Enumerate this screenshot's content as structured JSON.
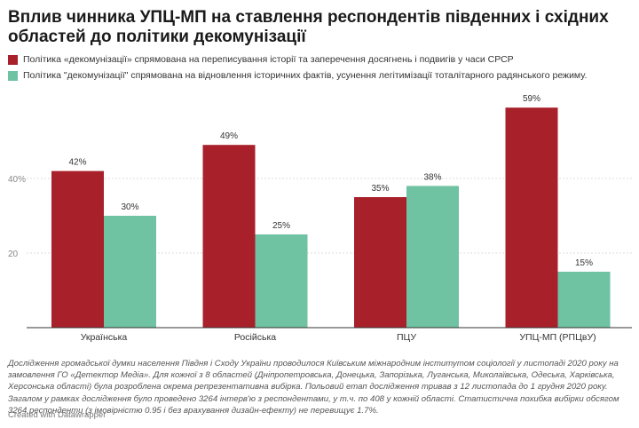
{
  "title": "Вплив чинника УПЦ-МП на ставлення респондентів південних і східних областей до політики декомунізації",
  "legend": [
    {
      "label": "Політика «декомунізації» спрямована на переписування історії та заперечення досягнень і подвигів у часи СРСР",
      "color": "#a8202a"
    },
    {
      "label": "Політика \"декомунізації\" спрямована на відновлення історичних фактів, усунення легітимізації тоталітарного радянського режиму.",
      "color": "#6fc2a2"
    }
  ],
  "chart_data": {
    "type": "bar",
    "categories": [
      "Українська",
      "Російська",
      "ПЦУ",
      "УПЦ-МП (РПЦвУ)"
    ],
    "series": [
      {
        "values": [
          42,
          49,
          35,
          59
        ],
        "labels": [
          "42%",
          "49%",
          "35%",
          "59%"
        ],
        "color": "#a8202a"
      },
      {
        "values": [
          30,
          25,
          38,
          15
        ],
        "labels": [
          "30%",
          "25%",
          "38%",
          "15%"
        ],
        "color": "#6fc2a2"
      }
    ],
    "yticks": [
      20,
      40
    ],
    "ytick_labels": [
      "20",
      "40%"
    ],
    "ylim": [
      0,
      60
    ],
    "grid": true
  },
  "note": "Дослідження громадської думки населення Півдня і Сходу України проводилося Київським міжнародним інститутом соціології у листопаді 2020 року на замовлення ГО «Детектор Медіа». Для кожної з 8 областей (Дніпропетровська, Донецька, Запорізька, Луганська, Миколаївська, Одеська, Харківська, Херсонська області) була розроблена окрема репрезентативна вибірка. Польовий етап дослідження тривав з 12 листопада до 1 грудня 2020 року. Загалом у рамках дослідження було проведено 3264 інтерв'ю з респондентами, у т.ч. по 408 у кожній області. Статистична похибка вибірки обсягом 3264 респонденти (з імовірністю 0.95 і без врахування дизайн-ефекту) не перевищує 1.7%.",
  "credit": "Created with Datawrapper"
}
